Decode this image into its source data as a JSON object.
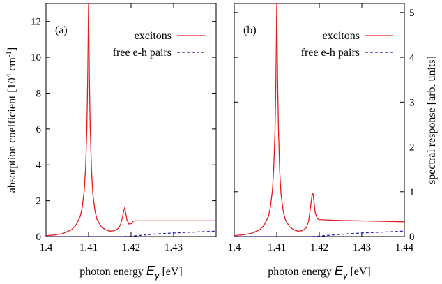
{
  "chart_data": [
    {
      "type": "line",
      "panel_label": "(a)",
      "xlabel": "photon energy",
      "xlabel_symbol": "E",
      "xlabel_subscript": "γ",
      "xlabel_unit": "[eV]",
      "ylabel_main": "absorption coefficient [10",
      "ylabel_sup1": "4",
      "ylabel_mid": " cm",
      "ylabel_sup2": "-1",
      "ylabel_end": "]",
      "xlim": [
        1.4,
        1.44
      ],
      "ylim": [
        0,
        13
      ],
      "xticks": [
        1.4,
        1.41,
        1.42,
        1.43
      ],
      "xtick_labels": [
        "1.4",
        "1.41",
        "1.42",
        "1.43"
      ],
      "yticks": [
        0,
        2,
        4,
        6,
        8,
        10,
        12
      ],
      "ytick_labels": [
        "0",
        "2",
        "4",
        "6",
        "8",
        "10",
        "12"
      ],
      "legend_position": "top-right",
      "series": [
        {
          "name": "excitons",
          "color": "#e41a1c",
          "style": "solid",
          "x": [
            1.4,
            1.402,
            1.404,
            1.406,
            1.407,
            1.408,
            1.4085,
            1.409,
            1.4093,
            1.4096,
            1.4098,
            1.41,
            1.4102,
            1.4104,
            1.4107,
            1.411,
            1.4115,
            1.412,
            1.413,
            1.414,
            1.415,
            1.416,
            1.417,
            1.4175,
            1.418,
            1.4183,
            1.4185,
            1.4188,
            1.419,
            1.4195,
            1.42,
            1.4205,
            1.421,
            1.425,
            1.43,
            1.435,
            1.44
          ],
          "y": [
            0.05,
            0.09,
            0.17,
            0.38,
            0.62,
            1.1,
            1.6,
            2.6,
            3.8,
            6.0,
            8.8,
            13.0,
            8.8,
            6.0,
            3.7,
            2.4,
            1.45,
            0.95,
            0.55,
            0.38,
            0.3,
            0.32,
            0.45,
            0.65,
            1.1,
            1.45,
            1.6,
            1.25,
            0.95,
            0.7,
            0.72,
            0.86,
            0.88,
            0.88,
            0.88,
            0.88,
            0.88
          ]
        },
        {
          "name": "free e-h pairs",
          "color": "#1f1fb4",
          "style": "dashed",
          "x": [
            1.4,
            1.41,
            1.418,
            1.42,
            1.425,
            1.43,
            1.435,
            1.44
          ],
          "y": [
            0,
            0,
            0,
            0.02,
            0.13,
            0.2,
            0.25,
            0.3
          ]
        }
      ]
    },
    {
      "type": "line",
      "panel_label": "(b)",
      "xlabel": "photon energy",
      "xlabel_symbol": "E",
      "xlabel_subscript": "γ",
      "xlabel_unit": "[eV]",
      "ylabel": "spectral response [arb. units]",
      "ylabel_side": "right",
      "xlim": [
        1.4,
        1.44
      ],
      "ylim": [
        0,
        5.2
      ],
      "xticks": [
        1.4,
        1.41,
        1.42,
        1.43,
        1.44
      ],
      "xtick_labels": [
        "1.4",
        "1.41",
        "1.42",
        "1.43",
        "1.44"
      ],
      "yticks": [
        0,
        1,
        2,
        3,
        4,
        5
      ],
      "ytick_labels": [
        "0",
        "1",
        "2",
        "3",
        "4",
        "5"
      ],
      "legend_position": "top-right",
      "series": [
        {
          "name": "excitons",
          "color": "#e41a1c",
          "style": "solid",
          "x": [
            1.4,
            1.402,
            1.404,
            1.406,
            1.407,
            1.408,
            1.4085,
            1.409,
            1.4093,
            1.4096,
            1.4098,
            1.41,
            1.4102,
            1.4104,
            1.4107,
            1.411,
            1.4115,
            1.412,
            1.413,
            1.414,
            1.415,
            1.416,
            1.417,
            1.4175,
            1.418,
            1.4183,
            1.4185,
            1.4188,
            1.419,
            1.4195,
            1.42,
            1.422,
            1.425,
            1.43,
            1.435,
            1.44
          ],
          "y": [
            0.02,
            0.04,
            0.07,
            0.15,
            0.25,
            0.44,
            0.65,
            1.05,
            1.55,
            2.4,
            3.5,
            5.2,
            3.5,
            2.4,
            1.45,
            0.95,
            0.58,
            0.38,
            0.22,
            0.15,
            0.12,
            0.13,
            0.2,
            0.35,
            0.7,
            0.93,
            0.96,
            0.75,
            0.55,
            0.4,
            0.38,
            0.37,
            0.36,
            0.35,
            0.34,
            0.33
          ]
        },
        {
          "name": "free e-h pairs",
          "color": "#1f1fb4",
          "style": "dashed",
          "x": [
            1.4,
            1.41,
            1.418,
            1.42,
            1.425,
            1.43,
            1.435,
            1.44
          ],
          "y": [
            0,
            0,
            0,
            0.01,
            0.05,
            0.08,
            0.1,
            0.12
          ]
        }
      ]
    }
  ]
}
